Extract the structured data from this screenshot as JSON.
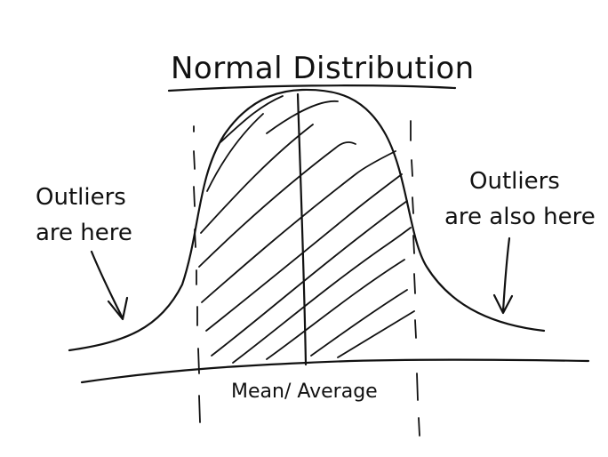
{
  "diagram": {
    "title": "Normal Distribution",
    "left_note": {
      "line1": "Outliers",
      "line2": "are here"
    },
    "right_note": {
      "line1": "Outliers",
      "line2": "are also here"
    },
    "center_label": "Mean/ Average"
  }
}
